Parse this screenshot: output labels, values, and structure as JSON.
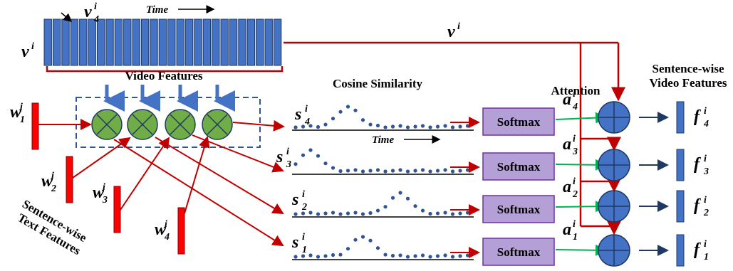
{
  "video_label": {
    "base": "v",
    "sup": "i"
  },
  "video_pointer_label": {
    "base": "v",
    "sub": "4",
    "sup": "i"
  },
  "time_labels": [
    "Time",
    "Time"
  ],
  "video_features": "Video Features",
  "v_line_label": {
    "base": "v",
    "sup": "i"
  },
  "cosine_similarity": "Cosine Similarity",
  "attention": "Attention",
  "video_out_title": [
    "Sentence-wise",
    "Video Features"
  ],
  "text_features_title": [
    "Sentence-wise",
    "Text Features"
  ],
  "text_labels": [
    {
      "base": "w",
      "sub": "1",
      "sup": "i"
    },
    {
      "base": "w",
      "sub": "2",
      "sup": "i"
    },
    {
      "base": "w",
      "sub": "3",
      "sup": "i"
    },
    {
      "base": "w",
      "sub": "4",
      "sup": "i"
    }
  ],
  "similarity_labels": [
    {
      "base": "s",
      "sub": "4",
      "sup": "i"
    },
    {
      "base": "s",
      "sub": "3",
      "sup": "i"
    },
    {
      "base": "s",
      "sub": "2",
      "sup": "i"
    },
    {
      "base": "s",
      "sub": "1",
      "sup": "i"
    }
  ],
  "softmax": [
    "Softmax",
    "Softmax",
    "Softmax",
    "Softmax"
  ],
  "attention_labels": [
    {
      "base": "a",
      "sub": "4",
      "sup": "i"
    },
    {
      "base": "a",
      "sub": "3",
      "sup": "i"
    },
    {
      "base": "a",
      "sub": "2",
      "sup": "i"
    },
    {
      "base": "a",
      "sub": "1",
      "sup": "i"
    }
  ],
  "output_labels": [
    {
      "base": "f",
      "sub": "4",
      "sup": "i"
    },
    {
      "base": "f",
      "sub": "3",
      "sup": "i"
    },
    {
      "base": "f",
      "sub": "2",
      "sup": "i"
    },
    {
      "base": "f",
      "sub": "1",
      "sup": "i"
    }
  ]
}
